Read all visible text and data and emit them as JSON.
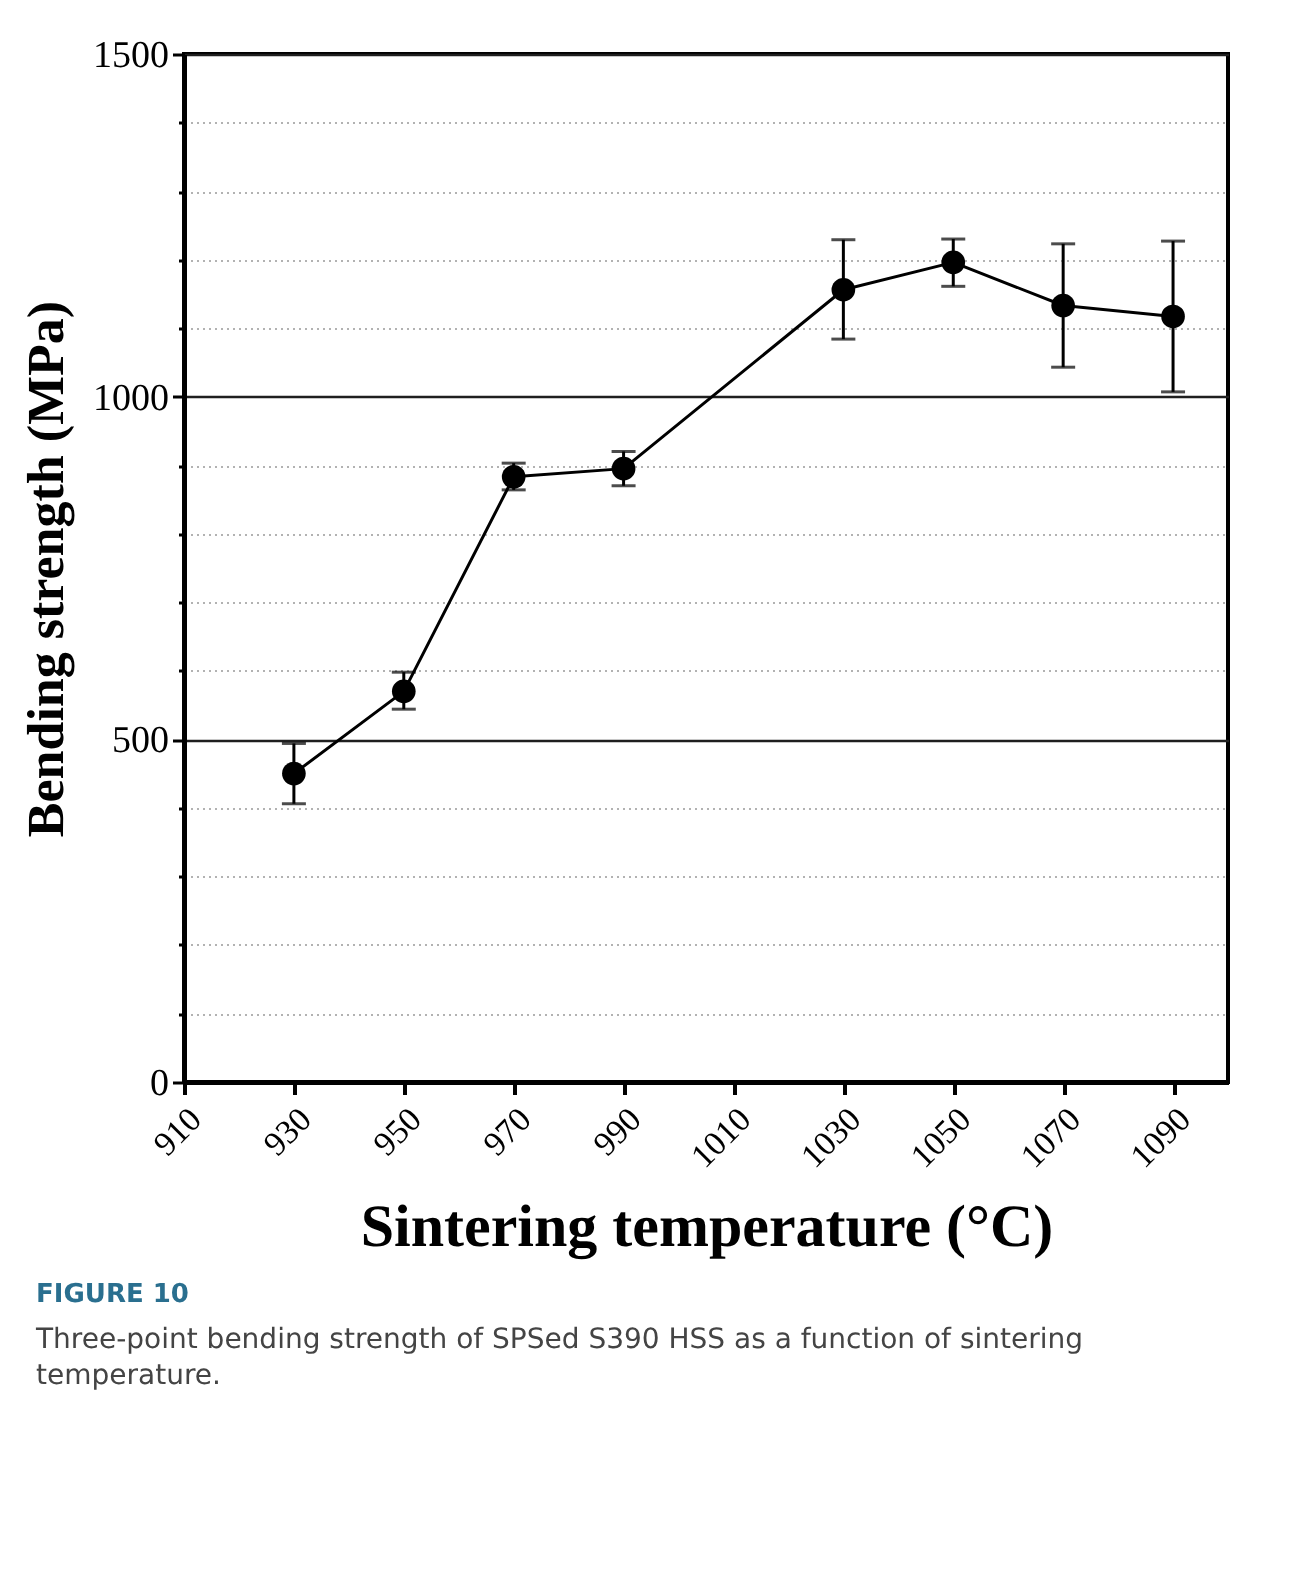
{
  "chart_data": {
    "type": "line",
    "xlabel": "Sintering temperature (°C)",
    "ylabel": "Bending strength (MPa)",
    "x": [
      930,
      950,
      970,
      990,
      1030,
      1050,
      1070,
      1090
    ],
    "series": [
      {
        "color": "#000000",
        "values": [
          450,
          570,
          883,
          895,
          1156,
          1196,
          1133,
          1117
        ],
        "errors": [
          [
            406,
            494
          ],
          [
            544,
            598
          ],
          [
            864,
            903
          ],
          [
            870,
            920
          ],
          [
            1084,
            1229
          ],
          [
            1161,
            1230
          ],
          [
            1043,
            1223
          ],
          [
            1007,
            1227
          ]
        ]
      }
    ],
    "xlim": [
      910,
      1100
    ],
    "xticks": [
      910,
      930,
      950,
      970,
      990,
      1010,
      1030,
      1050,
      1070,
      1090
    ],
    "ylim": [
      0,
      1500
    ],
    "yticks": [
      0,
      {
        "value": 100,
        "label": null
      },
      {
        "value": 200,
        "label": null
      },
      {
        "value": 300,
        "label": null
      },
      {
        "value": 400,
        "label": null
      },
      500,
      {
        "value": 600,
        "label": null
      },
      {
        "value": 700,
        "label": null
      },
      {
        "value": 800,
        "label": null
      },
      {
        "value": 900,
        "label": null
      },
      1000,
      {
        "value": 1100,
        "label": null
      },
      {
        "value": 1200,
        "label": null
      },
      {
        "value": 1300,
        "label": null
      },
      {
        "value": 1400,
        "label": null
      },
      1500
    ],
    "grid": "y",
    "marker": "circle",
    "line_style": "solid",
    "annotations": [
      "FIGURE 10",
      "Three-point bending strength of SPSed S390 HSS as a function of sintering temperature."
    ]
  }
}
